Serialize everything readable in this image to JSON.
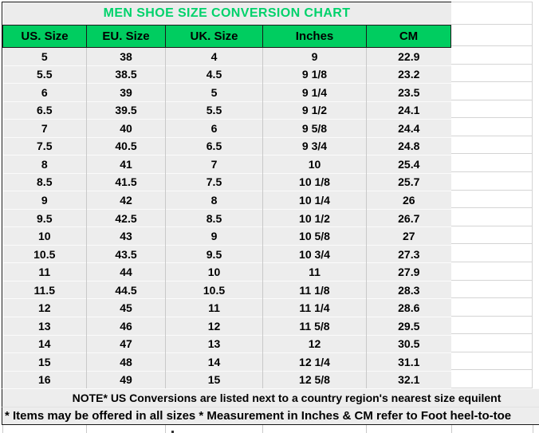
{
  "title": "MEN SHOE SIZE CONVERSION CHART",
  "table": {
    "headers": [
      "US. Size",
      "EU. Size",
      "UK. Size",
      "Inches",
      "CM"
    ],
    "rows": [
      [
        "5",
        "38",
        "4",
        "9",
        "22.9"
      ],
      [
        "5.5",
        "38.5",
        "4.5",
        "9 1/8",
        "23.2"
      ],
      [
        "6",
        "39",
        "5",
        "9 1/4",
        "23.5"
      ],
      [
        "6.5",
        "39.5",
        "5.5",
        "9 1/2",
        "24.1"
      ],
      [
        "7",
        "40",
        "6",
        "9 5/8",
        "24.4"
      ],
      [
        "7.5",
        "40.5",
        "6.5",
        "9 3/4",
        "24.8"
      ],
      [
        "8",
        "41",
        "7",
        "10",
        "25.4"
      ],
      [
        "8.5",
        "41.5",
        "7.5",
        "10 1/8",
        "25.7"
      ],
      [
        "9",
        "42",
        "8",
        "10 1/4",
        "26"
      ],
      [
        "9.5",
        "42.5",
        "8.5",
        "10 1/2",
        "26.7"
      ],
      [
        "10",
        "43",
        "9",
        "10 5/8",
        "27"
      ],
      [
        "10.5",
        "43.5",
        "9.5",
        "10 3/4",
        "27.3"
      ],
      [
        "11",
        "44",
        "10",
        "11",
        "27.9"
      ],
      [
        "11.5",
        "44.5",
        "10.5",
        "11 1/8",
        "28.3"
      ],
      [
        "12",
        "45",
        "11",
        "11 1/4",
        "28.6"
      ],
      [
        "13",
        "46",
        "12",
        "11 5/8",
        "29.5"
      ],
      [
        "14",
        "47",
        "13",
        "12",
        "30.5"
      ],
      [
        "15",
        "48",
        "14",
        "12 1/4",
        "31.1"
      ],
      [
        "16",
        "49",
        "15",
        "12 5/8",
        "32.1"
      ]
    ]
  },
  "notes": {
    "note1": "NOTE* US Conversions are listed next to a country region's nearest size equilent",
    "note2": "* Items may be offered in all sizes * Measurement in Inches & CM refer to Foot heel-to-toe"
  },
  "colors": {
    "header_bg": "#00cd60",
    "title_text": "#00d26b",
    "cell_bg": "#ededed"
  }
}
